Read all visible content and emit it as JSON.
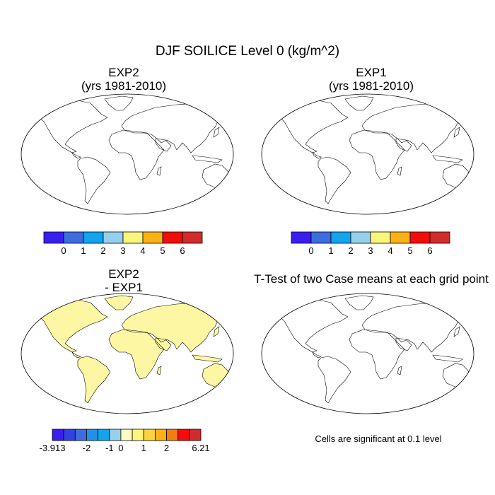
{
  "title": "DJF SOILICE Level 0 (kg/m^2)",
  "panels": [
    {
      "id": "exp2",
      "title_line1": "EXP2",
      "title_line2": "(yrs 1981-2010)"
    },
    {
      "id": "exp1",
      "title_line1": "EXP1",
      "title_line2": "(yrs 1981-2010)"
    },
    {
      "id": "diff",
      "title_line1": "EXP2",
      "title_line2": "- EXP1"
    },
    {
      "id": "ttest",
      "title_line1": "T-Test of two Case means at each grid point",
      "title_line2": ""
    }
  ],
  "colorbar_abs": {
    "colors": [
      "#3a1ef0",
      "#3c6ee0",
      "#12a4ee",
      "#97d0ec",
      "#fbf57b",
      "#fab115",
      "#f20c0c",
      "#d12b2b"
    ],
    "tick_labels": [
      "0",
      "1",
      "2",
      "3",
      "4",
      "5",
      "6"
    ]
  },
  "colorbar_diff": {
    "colors": [
      "#3a1ef0",
      "#3042e6",
      "#3c6ee0",
      "#2191e8",
      "#12a4ee",
      "#97d0ec",
      "#fffbc0",
      "#fbf57b",
      "#fad33f",
      "#fab115",
      "#f47d10",
      "#f20c0c",
      "#d12b2b"
    ],
    "tick_labels": [
      "-3.913",
      "-2",
      "-1",
      "0",
      "1",
      "2",
      "6.21"
    ]
  },
  "ttest_note": "Cells are significant at 0.1 level",
  "colors": {
    "land_low": "#3c6ee0",
    "diff_land": "#fdf7a4",
    "diff_neg": "#97d0ec",
    "significant": "#f20c0c",
    "border": "#000000"
  }
}
